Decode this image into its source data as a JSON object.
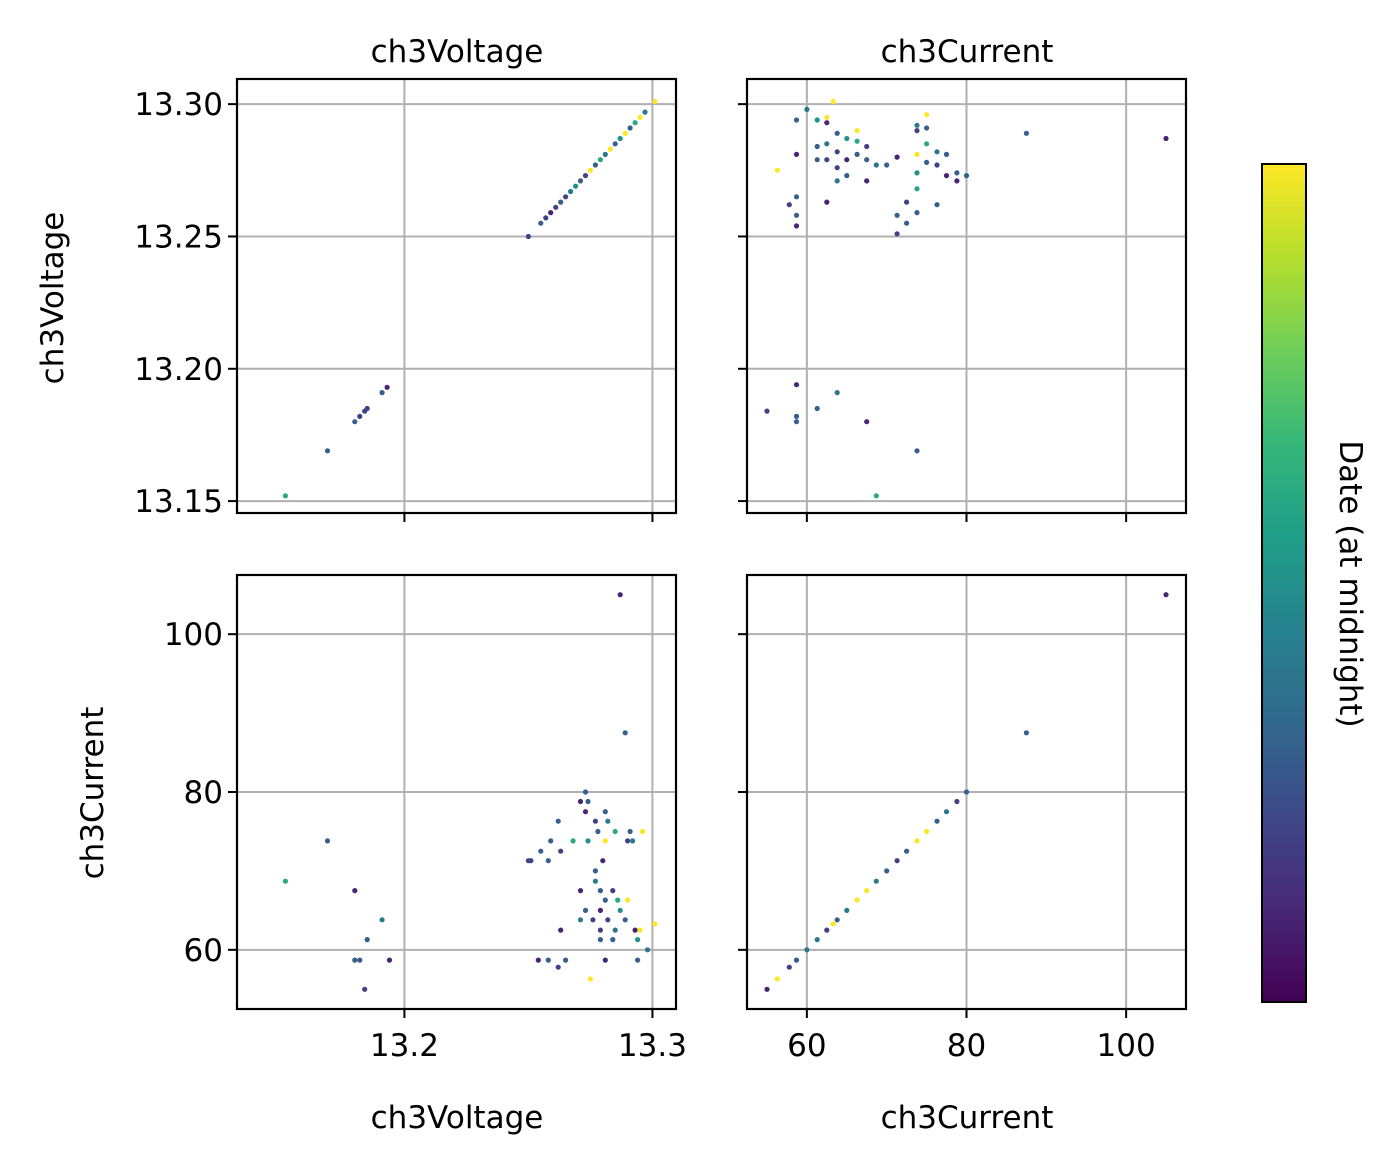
{
  "colors": {
    "grid": "#b0b0b0",
    "frame": "#000000",
    "viridis": [
      "#440154",
      "#482878",
      "#3e4989",
      "#31688e",
      "#26828e",
      "#1f9e89",
      "#35b779",
      "#6ece58",
      "#b5de2b",
      "#fde725"
    ]
  },
  "colorbar": {
    "label": "Date (at midnight)"
  },
  "chart_data": [
    {
      "type": "scatter",
      "panel": "voltage-vs-voltage",
      "title": "ch3Voltage",
      "xlabel": "",
      "ylabel": "ch3Voltage",
      "xlim": [
        13.1325,
        13.3095
      ],
      "ylim": [
        13.1455,
        13.3095
      ],
      "xticks": [
        {
          "v": 13.2,
          "label": ""
        },
        {
          "v": 13.3,
          "label": ""
        }
      ],
      "yticks": [
        {
          "v": 13.15,
          "label": "13.15"
        },
        {
          "v": 13.2,
          "label": "13.20"
        },
        {
          "v": 13.25,
          "label": "13.25"
        },
        {
          "v": 13.3,
          "label": "13.30"
        }
      ],
      "grid": true,
      "points": [
        [
          13.152,
          13.152,
          0.6
        ],
        [
          13.169,
          13.169,
          0.3
        ],
        [
          13.18,
          13.18,
          0.3
        ],
        [
          13.182,
          13.182,
          0.2
        ],
        [
          13.184,
          13.184,
          0.2
        ],
        [
          13.185,
          13.185,
          0.2
        ],
        [
          13.191,
          13.191,
          0.3
        ],
        [
          13.193,
          13.193,
          0.1
        ],
        [
          13.25,
          13.25,
          0.2
        ],
        [
          13.255,
          13.255,
          0.3
        ],
        [
          13.257,
          13.257,
          0.2
        ],
        [
          13.259,
          13.259,
          0.1
        ],
        [
          13.261,
          13.261,
          0.2
        ],
        [
          13.263,
          13.263,
          0.3
        ],
        [
          13.265,
          13.265,
          0.2
        ],
        [
          13.267,
          13.267,
          0.4
        ],
        [
          13.269,
          13.269,
          0.5
        ],
        [
          13.271,
          13.271,
          0.3
        ],
        [
          13.273,
          13.273,
          0.2
        ],
        [
          13.275,
          13.275,
          1.0
        ],
        [
          13.277,
          13.277,
          0.3
        ],
        [
          13.279,
          13.279,
          0.6
        ],
        [
          13.281,
          13.281,
          0.4
        ],
        [
          13.283,
          13.283,
          1.0
        ],
        [
          13.285,
          13.285,
          0.3
        ],
        [
          13.287,
          13.287,
          0.5
        ],
        [
          13.289,
          13.289,
          1.0
        ],
        [
          13.291,
          13.291,
          0.3
        ],
        [
          13.293,
          13.293,
          0.6
        ],
        [
          13.295,
          13.295,
          1.0
        ],
        [
          13.297,
          13.297,
          0.4
        ],
        [
          13.301,
          13.301,
          1.0
        ]
      ]
    },
    {
      "type": "scatter",
      "panel": "current-vs-voltage",
      "title": "ch3Current",
      "xlabel": "",
      "ylabel": "",
      "xlim": [
        52.5,
        107.5
      ],
      "ylim": [
        13.1455,
        13.3095
      ],
      "xticks": [
        {
          "v": 60,
          "label": ""
        },
        {
          "v": 80,
          "label": ""
        },
        {
          "v": 100,
          "label": ""
        }
      ],
      "yticks": [
        {
          "v": 13.15,
          "label": ""
        },
        {
          "v": 13.2,
          "label": ""
        },
        {
          "v": 13.25,
          "label": ""
        },
        {
          "v": 13.3,
          "label": ""
        }
      ],
      "grid": true,
      "points": [
        [
          60.0,
          13.298,
          0.4
        ],
        [
          58.7,
          13.294,
          0.3
        ],
        [
          61.3,
          13.294,
          0.5
        ],
        [
          62.5,
          13.293,
          0.1
        ],
        [
          62.5,
          13.295,
          1.0
        ],
        [
          63.3,
          13.301,
          1.0
        ],
        [
          56.3,
          13.275,
          1.0
        ],
        [
          57.8,
          13.262,
          0.2
        ],
        [
          58.7,
          13.265,
          0.3
        ],
        [
          58.7,
          13.258,
          0.3
        ],
        [
          58.7,
          13.254,
          0.1
        ],
        [
          58.7,
          13.281,
          0.1
        ],
        [
          61.3,
          13.284,
          0.3
        ],
        [
          61.3,
          13.279,
          0.3
        ],
        [
          62.5,
          13.285,
          0.4
        ],
        [
          62.5,
          13.279,
          0.2
        ],
        [
          62.5,
          13.263,
          0.1
        ],
        [
          63.8,
          13.289,
          0.3
        ],
        [
          63.8,
          13.282,
          0.2
        ],
        [
          63.8,
          13.276,
          0.2
        ],
        [
          63.8,
          13.271,
          0.4
        ],
        [
          65.0,
          13.287,
          0.5
        ],
        [
          65.0,
          13.279,
          0.1
        ],
        [
          65.0,
          13.273,
          0.3
        ],
        [
          66.3,
          13.29,
          1.0
        ],
        [
          66.3,
          13.286,
          0.6
        ],
        [
          66.3,
          13.281,
          0.3
        ],
        [
          67.5,
          13.284,
          0.2
        ],
        [
          67.5,
          13.279,
          0.3
        ],
        [
          67.5,
          13.271,
          0.1
        ],
        [
          68.7,
          13.277,
          0.4
        ],
        [
          70.0,
          13.277,
          0.3
        ],
        [
          71.3,
          13.28,
          0.1
        ],
        [
          71.3,
          13.258,
          0.3
        ],
        [
          71.3,
          13.251,
          0.2
        ],
        [
          72.5,
          13.263,
          0.2
        ],
        [
          72.5,
          13.255,
          0.3
        ],
        [
          73.8,
          13.292,
          0.4
        ],
        [
          73.8,
          13.29,
          0.2
        ],
        [
          73.8,
          13.281,
          1.0
        ],
        [
          73.8,
          13.274,
          0.5
        ],
        [
          73.8,
          13.268,
          0.6
        ],
        [
          73.8,
          13.259,
          0.3
        ],
        [
          75.0,
          13.296,
          1.0
        ],
        [
          75.0,
          13.291,
          0.3
        ],
        [
          75.0,
          13.285,
          0.6
        ],
        [
          75.0,
          13.278,
          0.3
        ],
        [
          76.3,
          13.282,
          0.4
        ],
        [
          76.3,
          13.277,
          0.2
        ],
        [
          76.3,
          13.262,
          0.3
        ],
        [
          77.5,
          13.281,
          0.3
        ],
        [
          77.5,
          13.273,
          0.1
        ],
        [
          78.8,
          13.274,
          0.3
        ],
        [
          78.8,
          13.271,
          0.1
        ],
        [
          80.0,
          13.273,
          0.3
        ],
        [
          87.5,
          13.289,
          0.3
        ],
        [
          105.0,
          13.287,
          0.1
        ],
        [
          55.0,
          13.184,
          0.2
        ],
        [
          58.7,
          13.194,
          0.1
        ],
        [
          58.7,
          13.182,
          0.3
        ],
        [
          58.7,
          13.18,
          0.3
        ],
        [
          61.3,
          13.185,
          0.3
        ],
        [
          63.8,
          13.191,
          0.4
        ],
        [
          67.5,
          13.18,
          0.1
        ],
        [
          73.8,
          13.169,
          0.3
        ],
        [
          68.7,
          13.152,
          0.6
        ]
      ]
    },
    {
      "type": "scatter",
      "panel": "voltage-vs-current",
      "title": "",
      "xlabel": "ch3Voltage",
      "ylabel": "ch3Current",
      "xlim": [
        13.1325,
        13.3095
      ],
      "ylim": [
        52.5,
        107.5
      ],
      "xticks": [
        {
          "v": 13.2,
          "label": "13.2"
        },
        {
          "v": 13.3,
          "label": "13.3"
        }
      ],
      "yticks": [
        {
          "v": 60,
          "label": "60"
        },
        {
          "v": 80,
          "label": "80"
        },
        {
          "v": 100,
          "label": "100"
        }
      ],
      "grid": true,
      "points": [
        [
          13.152,
          68.7,
          0.6
        ],
        [
          13.169,
          73.8,
          0.3
        ],
        [
          13.18,
          67.5,
          0.1
        ],
        [
          13.18,
          58.7,
          0.3
        ],
        [
          13.182,
          58.7,
          0.3
        ],
        [
          13.184,
          55.0,
          0.2
        ],
        [
          13.185,
          61.3,
          0.3
        ],
        [
          13.191,
          63.8,
          0.4
        ],
        [
          13.194,
          58.7,
          0.1
        ],
        [
          13.25,
          71.3,
          0.2
        ],
        [
          13.251,
          71.3,
          0.2
        ],
        [
          13.254,
          58.7,
          0.1
        ],
        [
          13.255,
          72.5,
          0.3
        ],
        [
          13.258,
          71.3,
          0.3
        ],
        [
          13.258,
          58.7,
          0.3
        ],
        [
          13.259,
          73.8,
          0.3
        ],
        [
          13.262,
          57.8,
          0.2
        ],
        [
          13.262,
          76.3,
          0.3
        ],
        [
          13.263,
          62.5,
          0.1
        ],
        [
          13.263,
          72.5,
          0.2
        ],
        [
          13.265,
          58.7,
          0.3
        ],
        [
          13.268,
          73.8,
          0.6
        ],
        [
          13.271,
          63.8,
          0.4
        ],
        [
          13.271,
          67.5,
          0.1
        ],
        [
          13.271,
          78.8,
          0.1
        ],
        [
          13.273,
          65.0,
          0.3
        ],
        [
          13.273,
          77.5,
          0.1
        ],
        [
          13.273,
          80.0,
          0.3
        ],
        [
          13.274,
          73.8,
          0.5
        ],
        [
          13.274,
          78.8,
          0.3
        ],
        [
          13.275,
          56.3,
          1.0
        ],
        [
          13.276,
          63.8,
          0.2
        ],
        [
          13.277,
          68.7,
          0.4
        ],
        [
          13.277,
          70.0,
          0.3
        ],
        [
          13.277,
          76.3,
          0.2
        ],
        [
          13.278,
          75.0,
          0.3
        ],
        [
          13.279,
          61.3,
          0.3
        ],
        [
          13.279,
          62.5,
          0.2
        ],
        [
          13.279,
          65.0,
          0.1
        ],
        [
          13.279,
          67.5,
          0.3
        ],
        [
          13.28,
          71.3,
          0.1
        ],
        [
          13.281,
          58.7,
          0.1
        ],
        [
          13.281,
          66.3,
          0.3
        ],
        [
          13.281,
          73.8,
          1.0
        ],
        [
          13.281,
          77.5,
          0.3
        ],
        [
          13.282,
          63.8,
          0.2
        ],
        [
          13.282,
          76.3,
          0.4
        ],
        [
          13.284,
          61.3,
          0.3
        ],
        [
          13.284,
          67.5,
          0.2
        ],
        [
          13.285,
          62.5,
          0.4
        ],
        [
          13.285,
          75.0,
          0.6
        ],
        [
          13.286,
          66.3,
          0.6
        ],
        [
          13.287,
          65.0,
          0.5
        ],
        [
          13.287,
          105.0,
          0.1
        ],
        [
          13.289,
          63.8,
          0.3
        ],
        [
          13.289,
          87.5,
          0.3
        ],
        [
          13.29,
          66.3,
          1.0
        ],
        [
          13.29,
          73.8,
          0.2
        ],
        [
          13.291,
          75.0,
          0.3
        ],
        [
          13.292,
          73.8,
          0.4
        ],
        [
          13.293,
          62.5,
          0.1
        ],
        [
          13.294,
          58.7,
          0.3
        ],
        [
          13.294,
          61.3,
          0.5
        ],
        [
          13.295,
          62.5,
          1.0
        ],
        [
          13.296,
          75.0,
          1.0
        ],
        [
          13.298,
          60.0,
          0.4
        ],
        [
          13.301,
          63.3,
          1.0
        ]
      ]
    },
    {
      "type": "scatter",
      "panel": "current-vs-current",
      "title": "",
      "xlabel": "ch3Current",
      "ylabel": "",
      "xlim": [
        52.5,
        107.5
      ],
      "ylim": [
        52.5,
        107.5
      ],
      "xticks": [
        {
          "v": 60,
          "label": "60"
        },
        {
          "v": 80,
          "label": "80"
        },
        {
          "v": 100,
          "label": "100"
        }
      ],
      "yticks": [
        {
          "v": 60,
          "label": ""
        },
        {
          "v": 80,
          "label": ""
        },
        {
          "v": 100,
          "label": ""
        }
      ],
      "grid": true,
      "points": [
        [
          55.0,
          55.0,
          0.1
        ],
        [
          56.3,
          56.3,
          1.0
        ],
        [
          57.8,
          57.8,
          0.2
        ],
        [
          58.7,
          58.7,
          0.3
        ],
        [
          60.0,
          60.0,
          0.4
        ],
        [
          61.3,
          61.3,
          0.4
        ],
        [
          62.5,
          62.5,
          0.2
        ],
        [
          63.3,
          63.3,
          1.0
        ],
        [
          63.8,
          63.8,
          0.3
        ],
        [
          65.0,
          65.0,
          0.4
        ],
        [
          66.3,
          66.3,
          1.0
        ],
        [
          67.5,
          67.5,
          1.0
        ],
        [
          68.7,
          68.7,
          0.4
        ],
        [
          70.0,
          70.0,
          0.3
        ],
        [
          71.3,
          71.3,
          0.2
        ],
        [
          72.5,
          72.5,
          0.3
        ],
        [
          73.8,
          73.8,
          1.0
        ],
        [
          75.0,
          75.0,
          1.0
        ],
        [
          76.3,
          76.3,
          0.3
        ],
        [
          77.5,
          77.5,
          0.4
        ],
        [
          78.8,
          78.8,
          0.2
        ],
        [
          80.0,
          80.0,
          0.3
        ],
        [
          87.5,
          87.5,
          0.3
        ],
        [
          105.0,
          105.0,
          0.1
        ]
      ]
    }
  ]
}
